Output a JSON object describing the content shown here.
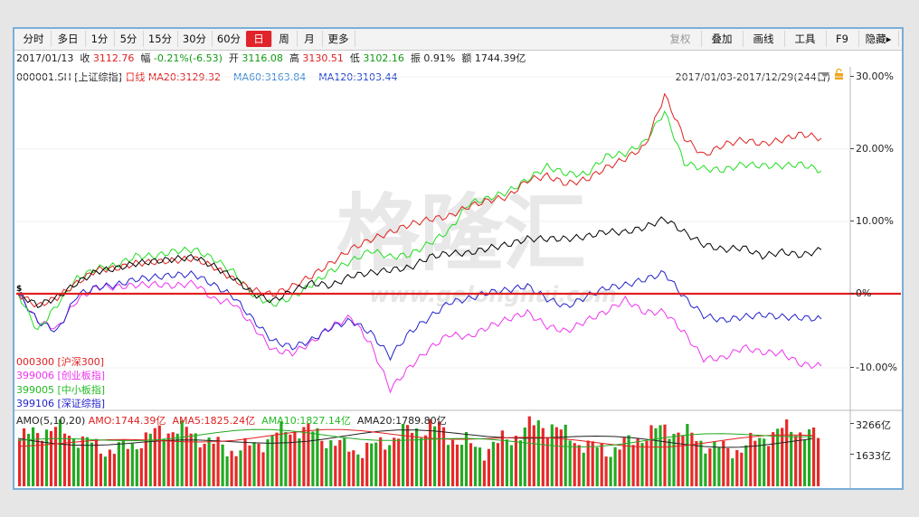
{
  "periods": [
    {
      "label": "分时",
      "w": 38
    },
    {
      "label": "多日",
      "w": 38
    },
    {
      "label": "1分",
      "w": 32
    },
    {
      "label": "5分",
      "w": 32
    },
    {
      "label": "15分",
      "w": 38
    },
    {
      "label": "30分",
      "w": 38
    },
    {
      "label": "60分",
      "w": 38
    },
    {
      "label": "日",
      "w": 28,
      "active": true
    },
    {
      "label": "周",
      "w": 28
    },
    {
      "label": "月",
      "w": 28
    },
    {
      "label": "更多",
      "w": 36
    }
  ],
  "tools": [
    {
      "label": "复权",
      "disabled": true
    },
    {
      "label": "叠加"
    },
    {
      "label": "画线"
    },
    {
      "label": "工具"
    },
    {
      "label": "F9"
    },
    {
      "label": "隐藏▸"
    }
  ],
  "quote": {
    "date": "2017/01/13",
    "close_label": "收",
    "close": "3112.76",
    "change_label": "幅",
    "change": "-0.21%(-6.53)",
    "open_label": "开",
    "open": "3116.08",
    "high_label": "高",
    "high": "3130.51",
    "low_label": "低",
    "low": "3102.16",
    "amp_label": "振",
    "amp": "0.91%",
    "amount_label": "额",
    "amount": "1744.39亿"
  },
  "legend": {
    "code": "000001.SH [上证综指]",
    "kline": "日线",
    "ma20": "MA20:3129.32",
    "ma60": "MA60:3163.84",
    "ma120": "MA120:3103.44"
  },
  "range": "2017/01/03-2017/12/29(244日)",
  "watermark": {
    "cn": "格隆汇",
    "en": "www.gelonghui.com"
  },
  "yaxis": [
    "30.00%",
    "20.00%",
    "10.00%",
    "0%",
    "-10.00%"
  ],
  "vol_axis": [
    "3266亿",
    "1633亿"
  ],
  "amo": {
    "title": "AMO(5,10,20)",
    "amo": "AMO:1744.39亿",
    "ama5": "AMA5:1825.24亿",
    "ama10": "AMA10:1827.14亿",
    "ama20": "AMA20:1789.80亿"
  },
  "colors": {
    "sh": "#000000",
    "hs300": "#e02020",
    "cyb": "#ee33ee",
    "zxb": "#22dd22",
    "szzz": "#2222cc"
  },
  "chart_data": {
    "type": "line",
    "y_unit": "%",
    "ylim": [
      -15,
      30
    ],
    "series": [
      {
        "name": "000001.SH [上证综指]",
        "color": "#000000",
        "values": [
          0,
          -1.6,
          -0.5,
          1.5,
          3.1,
          3.5,
          4.2,
          4.5,
          4.8,
          5.1,
          3.8,
          2.2,
          0,
          -1,
          0.4,
          1.5,
          1.1,
          2.5,
          2.9,
          3.3,
          3.6,
          5.1,
          5.6,
          5.6,
          6.3,
          6.8,
          7.6,
          7.6,
          7.6,
          7.9,
          8.6,
          8.5,
          9.2,
          10.4,
          8.5,
          6.8,
          6.1,
          6.4,
          5.2,
          5.8,
          5.3,
          6.1
        ]
      },
      {
        "name": "000300 [沪深300]",
        "color": "#e02020",
        "values": [
          0,
          -1.7,
          -0.5,
          1.5,
          3.3,
          3.5,
          4.2,
          4.4,
          4.6,
          4.9,
          3.7,
          2,
          0.5,
          -0.1,
          1,
          2.5,
          4.3,
          6.2,
          7.5,
          8.5,
          9.6,
          10.3,
          10.7,
          12.1,
          12.9,
          13.4,
          15.7,
          16.3,
          15.2,
          15.8,
          17.4,
          18.7,
          20.4,
          27.5,
          21.6,
          19.1,
          20.6,
          21.3,
          20.7,
          21.3,
          22.1,
          21.5
        ]
      },
      {
        "name": "399006 [创业板指]",
        "color": "#ee33ee",
        "values": [
          0,
          -3.8,
          -4.8,
          -0.9,
          0.9,
          0.9,
          1.2,
          1.3,
          1.1,
          1.5,
          -0.8,
          -1.3,
          -4.5,
          -7.8,
          -8.2,
          -6.7,
          -4.5,
          -3.2,
          -7,
          -13.2,
          -10.1,
          -7.6,
          -5.6,
          -6,
          -4.6,
          -3.5,
          -2.6,
          -4.5,
          -5.2,
          -3.7,
          -2.5,
          -0.8,
          -2.6,
          -2.5,
          -5.4,
          -9,
          -8.9,
          -7.4,
          -8.1,
          -8.2,
          -9.8,
          -10
        ]
      },
      {
        "name": "399005 [中小板指]",
        "color": "#22dd22",
        "values": [
          0,
          -5.1,
          -1.5,
          2.1,
          3.5,
          3.9,
          5.2,
          5.2,
          5.9,
          6.1,
          4.8,
          3,
          -0.2,
          -1.5,
          -0.5,
          1.3,
          3.2,
          4.5,
          6,
          5.1,
          5.4,
          7,
          8.7,
          12.5,
          13.2,
          14.1,
          15.8,
          17.6,
          16.6,
          16.5,
          19,
          19.4,
          21,
          25.2,
          18.1,
          17.3,
          17.1,
          17.9,
          17.7,
          17.7,
          17.9,
          17
        ]
      },
      {
        "name": "399106 [深证综指]",
        "color": "#2222cc",
        "values": [
          0,
          -3.8,
          -5.2,
          -0.2,
          0.9,
          1.2,
          2,
          2.3,
          2.6,
          2.7,
          1.2,
          -0.4,
          -3.6,
          -6.5,
          -7.4,
          -6.4,
          -4.6,
          -3.7,
          -5.4,
          -8.7,
          -5.3,
          -3.3,
          -1.2,
          -0.7,
          0.2,
          0.5,
          1.1,
          -0.7,
          -1.8,
          -0.4,
          0.8,
          1.2,
          2,
          2.9,
          -0.5,
          -3,
          -3.7,
          -3.2,
          -2.9,
          -3.2,
          -3.3,
          -3.5
        ]
      }
    ]
  }
}
